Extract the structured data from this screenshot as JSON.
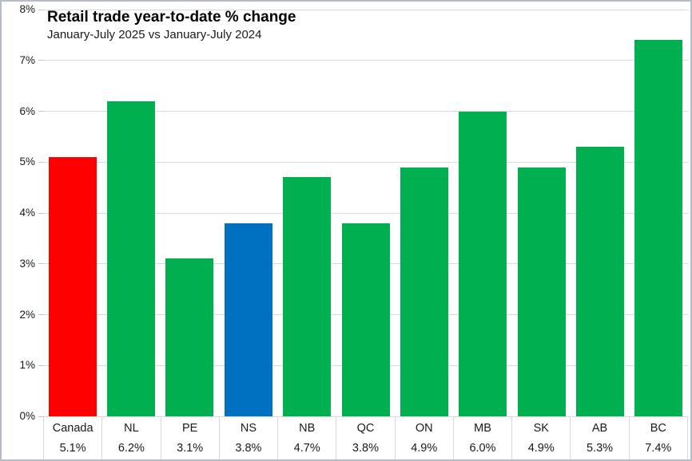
{
  "chart_data": {
    "type": "bar",
    "title": "Retail trade year-to-date % change",
    "subtitle": "January-July 2025 vs January-July 2024",
    "categories": [
      "Canada",
      "NL",
      "PE",
      "NS",
      "NB",
      "QC",
      "ON",
      "MB",
      "SK",
      "AB",
      "BC"
    ],
    "values": [
      5.1,
      6.2,
      3.1,
      3.8,
      4.7,
      3.8,
      4.9,
      6.0,
      4.9,
      5.3,
      7.4
    ],
    "value_labels": [
      "5.1%",
      "6.2%",
      "3.1%",
      "3.8%",
      "4.7%",
      "3.8%",
      "4.9%",
      "6.0%",
      "4.9%",
      "5.3%",
      "7.4%"
    ],
    "bar_colors": [
      "#FF0000",
      "#00B050",
      "#00B050",
      "#0070C0",
      "#00B050",
      "#00B050",
      "#00B050",
      "#00B050",
      "#00B050",
      "#00B050",
      "#00B050"
    ],
    "highlight_colors": {
      "canada": "#FF0000",
      "nova_scotia": "#0070C0",
      "default_province": "#00B050"
    },
    "xlabel": "",
    "ylabel": "",
    "ylim": [
      0,
      8
    ],
    "y_tick_labels": [
      "0%",
      "1%",
      "2%",
      "3%",
      "4%",
      "5%",
      "6%",
      "7%",
      "8%"
    ],
    "grid": true,
    "gridline_color": "#D9D9D9",
    "legend": "none"
  }
}
